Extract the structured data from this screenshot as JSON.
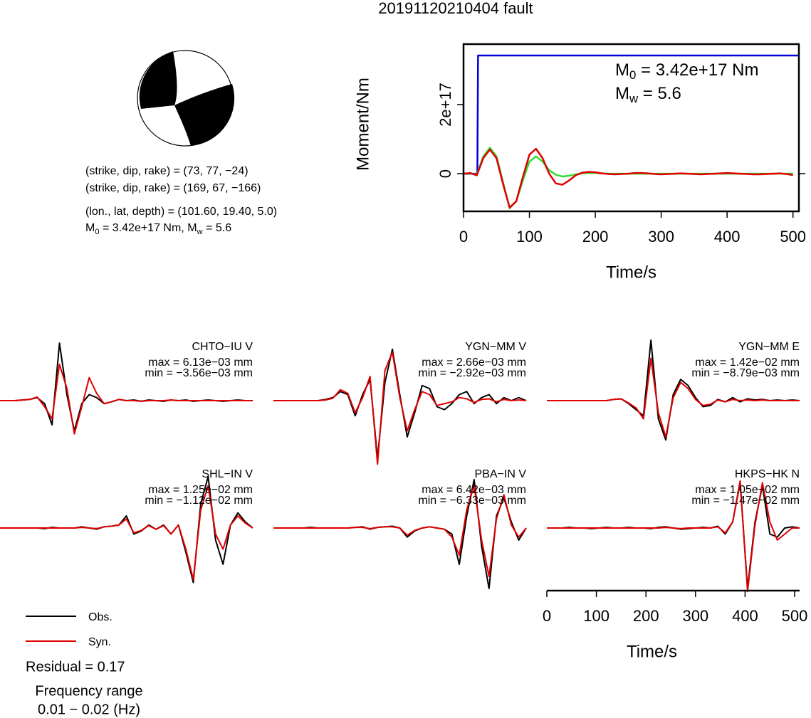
{
  "title": "20191120210404 fault",
  "mechanism": {
    "lines": [
      "(strike, dip, rake) = (73, 77, −24)",
      "(strike, dip, rake) = (169, 67, −166)",
      "(lon., lat, depth) = (101.60, 19.40, 5.0)"
    ],
    "moment_line": [
      "M",
      "0",
      " = 3.42e+17 Nm, M",
      "w",
      " = 5.6"
    ]
  },
  "legend": [
    {
      "label": "Obs.",
      "color": "#000000"
    },
    {
      "label": "Syn.",
      "color": "#e00000"
    }
  ],
  "residual": "Residual = 0.17",
  "frequency": [
    "Frequency range",
    "0.01 − 0.02 (Hz)"
  ],
  "chart_data": [
    {
      "type": "line",
      "xlabel": "Time/s",
      "ylabel": "Moment/Nm",
      "xlim": [
        0,
        509
      ],
      "ylim": [
        -1.09e+17,
        3.75e+17
      ],
      "xticks": [
        0,
        100,
        200,
        300,
        400,
        500
      ],
      "yticks": [
        0,
        {
          "value": 2e+17,
          "label": "2e+17"
        }
      ],
      "annotations": [
        [
          "M",
          "0",
          " = 3.42e+17 Nm"
        ],
        [
          "M",
          "w",
          " = 5.6"
        ]
      ],
      "series": [
        {
          "color": "#0000dd",
          "x": [
            0,
            21,
            22,
            509
          ],
          "values": [
            0,
            0,
            3.42e+17,
            3.42e+17
          ]
        },
        {
          "color": "#33dd33",
          "x": [
            0,
            10,
            20,
            30,
            40,
            50,
            60,
            70,
            80,
            90,
            100,
            110,
            120,
            130,
            140,
            150,
            160,
            170,
            180,
            190,
            200,
            210,
            220,
            230,
            240,
            250,
            260,
            270,
            280,
            290,
            300,
            310,
            320,
            330,
            340,
            350,
            360,
            370,
            380,
            390,
            400,
            410,
            420,
            430,
            440,
            450,
            460,
            470,
            480,
            490,
            500
          ],
          "values": [
            0,
            1000000000000000.0,
            -3000000000000000.0,
            5e+16,
            7.5e+16,
            5e+16,
            -2.5e+16,
            -1e+17,
            -8e+16,
            -2e+16,
            3.5e+16,
            5e+16,
            3.5e+16,
            1e+16,
            -3000000000000000.0,
            -8000000000000000.0,
            -6000000000000000.0,
            -2000000000000000.0,
            1000000000000000.0,
            2000000000000000.0,
            2000000000000000.0,
            1000000000000000.0,
            0,
            0,
            0,
            0,
            0,
            0,
            0,
            0,
            0,
            0,
            0,
            0,
            0,
            0,
            0,
            0,
            0,
            0,
            0,
            0,
            0,
            0,
            0,
            0,
            0,
            0,
            0,
            0,
            0
          ]
        },
        {
          "color": "#e00000",
          "x": [
            0,
            10,
            20,
            30,
            40,
            50,
            60,
            70,
            80,
            90,
            100,
            110,
            120,
            130,
            140,
            150,
            160,
            170,
            180,
            190,
            200,
            210,
            220,
            230,
            240,
            250,
            260,
            270,
            280,
            290,
            300,
            310,
            320,
            330,
            340,
            350,
            360,
            370,
            380,
            390,
            400,
            410,
            420,
            430,
            440,
            450,
            460,
            470,
            480,
            490,
            500
          ],
          "values": [
            0,
            2000000000000000.0,
            -5000000000000000.0,
            4.5e+16,
            7e+16,
            4.5e+16,
            -3e+16,
            -9.8e+16,
            -8e+16,
            -1e+16,
            5.5e+16,
            7.2e+16,
            4.5e+16,
            0,
            -2.8e+16,
            -3.2e+16,
            -2e+16,
            -5000000000000000.0,
            3000000000000000.0,
            5000000000000000.0,
            4000000000000000.0,
            1000000000000000.0,
            -1000000000000000.0,
            -2000000000000000.0,
            -1000000000000000.0,
            0,
            2000000000000000.0,
            2000000000000000.0,
            1000000000000000.0,
            -1000000000000000.0,
            -2000000000000000.0,
            -1000000000000000.0,
            0,
            1000000000000000.0,
            0,
            -1000000000000000.0,
            -2000000000000000.0,
            -1000000000000000.0,
            0,
            1000000000000000.0,
            2000000000000000.0,
            1000000000000000.0,
            0,
            -1000000000000000.0,
            -2000000000000000.0,
            -2000000000000000.0,
            -1000000000000000.0,
            0,
            1000000000000000.0,
            -1000000000000000.0,
            -4000000000000000.0
          ]
        }
      ]
    },
    {
      "type": "line",
      "title": "CHTO−IU V",
      "max_label": "max = 6.13e−03 mm",
      "min_label": "min = −3.56e−03 mm",
      "xlim": [
        0,
        510
      ],
      "ylim": [
        -1.1,
        1.1
      ],
      "x": [
        0,
        15,
        30,
        45,
        60,
        75,
        90,
        105,
        120,
        135,
        150,
        165,
        180,
        195,
        210,
        225,
        240,
        255,
        270,
        285,
        300,
        315,
        330,
        345,
        360,
        375,
        390,
        405,
        420,
        435,
        450,
        465,
        480,
        495,
        510
      ],
      "series": [
        {
          "color": "#000000",
          "values": [
            0,
            0,
            0,
            0.01,
            0.02,
            0.05,
            -0.05,
            -0.4,
            0.95,
            0.1,
            -0.5,
            -0.05,
            0.1,
            0.05,
            -0.05,
            -0.02,
            0.02,
            0,
            0.01,
            -0.01,
            0.01,
            0,
            -0.01,
            0.01,
            0,
            0.01,
            -0.01,
            0,
            0.01,
            0,
            -0.01,
            0,
            0.01,
            0,
            0
          ]
        },
        {
          "color": "#e00000",
          "values": [
            0,
            0,
            0,
            0.01,
            0.02,
            0.06,
            -0.1,
            -0.3,
            0.6,
            0.2,
            -0.55,
            -0.1,
            0.38,
            0.12,
            -0.05,
            -0.02,
            0.02,
            0,
            0,
            -0.01,
            0,
            0,
            0,
            0.01,
            0,
            0,
            0,
            0,
            0,
            0,
            0,
            0,
            0,
            0,
            0
          ]
        }
      ]
    },
    {
      "type": "line",
      "title": "YGN−MM V",
      "max_label": "max = 2.66e−03 mm",
      "min_label": "min = −2.92e−03 mm",
      "xlim": [
        0,
        510
      ],
      "ylim": [
        -1.1,
        1.1
      ],
      "x": [
        0,
        15,
        30,
        45,
        60,
        75,
        90,
        105,
        120,
        135,
        150,
        165,
        180,
        195,
        210,
        225,
        240,
        255,
        270,
        285,
        300,
        315,
        330,
        345,
        360,
        375,
        390,
        405,
        420,
        435,
        450,
        465,
        480,
        495,
        510
      ],
      "series": [
        {
          "color": "#000000",
          "values": [
            0,
            0,
            0,
            0,
            0,
            0,
            0,
            0.02,
            0.05,
            0.15,
            0.1,
            -0.25,
            0.1,
            0.35,
            -0.95,
            0.3,
            0.85,
            0.1,
            -0.6,
            -0.2,
            0.25,
            0.2,
            -0.1,
            -0.15,
            -0.05,
            0.1,
            0.15,
            -0.05,
            0.05,
            0.1,
            -0.05,
            0.05,
            0,
            0.05,
            0
          ]
        },
        {
          "color": "#e00000",
          "values": [
            0,
            0,
            0,
            0,
            0,
            0,
            0,
            0.01,
            0.04,
            0.18,
            0.12,
            -0.2,
            0.05,
            0.4,
            -1.05,
            0.5,
            0.8,
            0.05,
            -0.5,
            -0.15,
            0.15,
            0.1,
            -0.08,
            -0.05,
            -0.02,
            0.05,
            0.03,
            -0.03,
            0.02,
            0.03,
            -0.02,
            0.02,
            0,
            0.01,
            0
          ]
        }
      ]
    },
    {
      "type": "line",
      "title": "YGN−MM E",
      "max_label": "max = 1.42e−02 mm",
      "min_label": "min = −8.79e−03 mm",
      "xlim": [
        0,
        510
      ],
      "ylim": [
        -1.1,
        1.1
      ],
      "x": [
        0,
        15,
        30,
        45,
        60,
        75,
        90,
        105,
        120,
        135,
        150,
        165,
        180,
        195,
        210,
        225,
        240,
        255,
        270,
        285,
        300,
        315,
        330,
        345,
        360,
        375,
        390,
        405,
        420,
        435,
        450,
        465,
        480,
        495,
        510
      ],
      "series": [
        {
          "color": "#000000",
          "values": [
            0,
            0,
            0,
            0,
            0,
            0,
            0,
            0,
            0,
            0.02,
            0.03,
            -0.05,
            -0.15,
            -0.25,
            1.0,
            -0.3,
            -0.65,
            0.1,
            0.35,
            0.25,
            0.05,
            -0.1,
            -0.08,
            0.02,
            -0.02,
            0.05,
            -0.02,
            0.03,
            0.01,
            0.02,
            0,
            0.01,
            0,
            0.01,
            0
          ]
        },
        {
          "color": "#e00000",
          "values": [
            0,
            0,
            0,
            0,
            0,
            0,
            0,
            0,
            0,
            0.02,
            0.03,
            -0.04,
            -0.12,
            -0.3,
            0.7,
            -0.2,
            -0.6,
            0.05,
            0.3,
            0.2,
            0.02,
            -0.08,
            -0.06,
            0.01,
            -0.02,
            0.02,
            0,
            0.01,
            0,
            0.01,
            0,
            0,
            0,
            0,
            0
          ]
        }
      ]
    },
    {
      "type": "line",
      "title": "SHL−IN V",
      "max_label": "max = 1.25e−02 mm",
      "min_label": "min = −1.12e−02 mm",
      "xlim": [
        0,
        510
      ],
      "ylim": [
        -1.1,
        1.1
      ],
      "x": [
        0,
        15,
        30,
        45,
        60,
        75,
        90,
        105,
        120,
        135,
        150,
        165,
        180,
        195,
        210,
        225,
        240,
        255,
        270,
        285,
        300,
        315,
        330,
        345,
        360,
        375,
        390,
        405,
        420,
        435,
        450,
        465,
        480,
        495,
        510
      ],
      "series": [
        {
          "color": "#000000",
          "values": [
            0,
            0,
            0,
            0,
            0,
            0,
            -0.01,
            0.01,
            0,
            0,
            0,
            0.02,
            0,
            -0.02,
            0.02,
            0.03,
            0.05,
            0.2,
            -0.1,
            -0.05,
            0.05,
            -0.02,
            0.05,
            -0.1,
            0.05,
            -0.4,
            -0.9,
            0.4,
            0.85,
            -0.2,
            -0.6,
            0.05,
            0.25,
            0.1,
            0
          ]
        },
        {
          "color": "#e00000",
          "values": [
            0,
            0,
            0,
            0,
            0,
            0,
            0,
            0,
            0,
            0,
            0,
            0.01,
            0,
            -0.01,
            0.02,
            0.03,
            0.05,
            0.15,
            -0.08,
            -0.04,
            0.04,
            -0.02,
            0.04,
            -0.1,
            0.05,
            -0.35,
            -0.85,
            0.3,
            0.7,
            -0.1,
            -0.35,
            0.05,
            0.2,
            0.08,
            0
          ]
        }
      ]
    },
    {
      "type": "line",
      "title": "PBA−IN V",
      "max_label": "max = 6.42e−03 mm",
      "min_label": "min = −6.33e−03 mm",
      "xlim": [
        0,
        510
      ],
      "ylim": [
        -1.1,
        1.1
      ],
      "x": [
        0,
        15,
        30,
        45,
        60,
        75,
        90,
        105,
        120,
        135,
        150,
        165,
        180,
        195,
        210,
        225,
        240,
        255,
        270,
        285,
        300,
        315,
        330,
        345,
        360,
        375,
        390,
        405,
        420,
        435,
        450,
        465,
        480,
        495,
        510
      ],
      "series": [
        {
          "color": "#000000",
          "values": [
            0,
            0,
            0,
            0,
            0,
            0.01,
            0,
            0,
            0,
            0,
            0,
            0.01,
            0.02,
            -0.02,
            0.01,
            0.02,
            0.03,
            0,
            -0.15,
            -0.05,
            0,
            0.02,
            0,
            -0.02,
            -0.1,
            -0.6,
            0.2,
            0.8,
            -0.3,
            -1.0,
            0.2,
            0.5,
            0.1,
            -0.2,
            0
          ]
        },
        {
          "color": "#e00000",
          "values": [
            0,
            0,
            0,
            0,
            0,
            0,
            0,
            0,
            0,
            0,
            0,
            0.01,
            0.01,
            -0.01,
            0.01,
            0.02,
            0.02,
            0,
            -0.12,
            -0.04,
            0,
            0.02,
            0,
            -0.02,
            -0.15,
            -0.45,
            0.3,
            0.7,
            -0.2,
            -0.8,
            0.15,
            0.55,
            0.05,
            -0.15,
            0
          ]
        }
      ]
    },
    {
      "type": "line",
      "title": "HKPS−HK N",
      "max_label": "max = 1.05e−02 mm",
      "min_label": "min = −1.47e−02 mm",
      "xlim": [
        0,
        510
      ],
      "ylim": [
        -1.1,
        1.1
      ],
      "xlabel": "Time/s",
      "xticks": [
        0,
        100,
        200,
        300,
        400,
        500
      ],
      "x": [
        0,
        15,
        30,
        45,
        60,
        75,
        90,
        105,
        120,
        135,
        150,
        165,
        180,
        195,
        210,
        225,
        240,
        255,
        270,
        285,
        300,
        315,
        330,
        345,
        360,
        375,
        390,
        405,
        420,
        435,
        450,
        465,
        480,
        495,
        510
      ],
      "series": [
        {
          "color": "#000000",
          "values": [
            0,
            0,
            0,
            0.01,
            0,
            0,
            -0.01,
            0,
            0.01,
            0,
            0,
            0.01,
            0,
            0,
            -0.01,
            0.01,
            0.02,
            0,
            -0.02,
            -0.01,
            0,
            0.01,
            0,
            0.03,
            -0.1,
            0.1,
            0.75,
            -1.0,
            0.1,
            0.7,
            -0.1,
            -0.15,
            0,
            0.02,
            0
          ]
        },
        {
          "color": "#e00000",
          "values": [
            0,
            0,
            0,
            0,
            0,
            0,
            0,
            0,
            0,
            0,
            0,
            0,
            0,
            0,
            0,
            0,
            0.01,
            0,
            -0.01,
            0,
            0,
            0,
            0,
            0.02,
            -0.08,
            0.1,
            0.78,
            -1.05,
            0.05,
            0.75,
            0.1,
            -0.2,
            -0.1,
            0,
            0
          ]
        }
      ]
    }
  ]
}
